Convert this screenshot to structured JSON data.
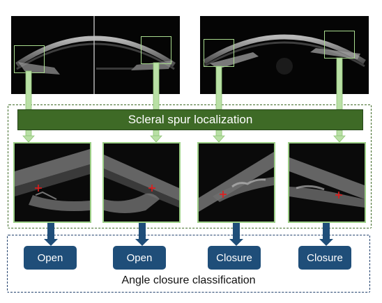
{
  "spur_label": "Scleral spur localization",
  "outcomes": [
    "Open",
    "Open",
    "Closure",
    "Closure"
  ],
  "classification_label": "Angle closure classification",
  "colors": {
    "green_box": "#3e6a26",
    "green_arrow": "#b9e0a5",
    "green_outline": "#9ccf86",
    "blue_button": "#1f4e79",
    "blue_frame": "#1f3f6b",
    "spur_marker": "#e51a1a"
  }
}
